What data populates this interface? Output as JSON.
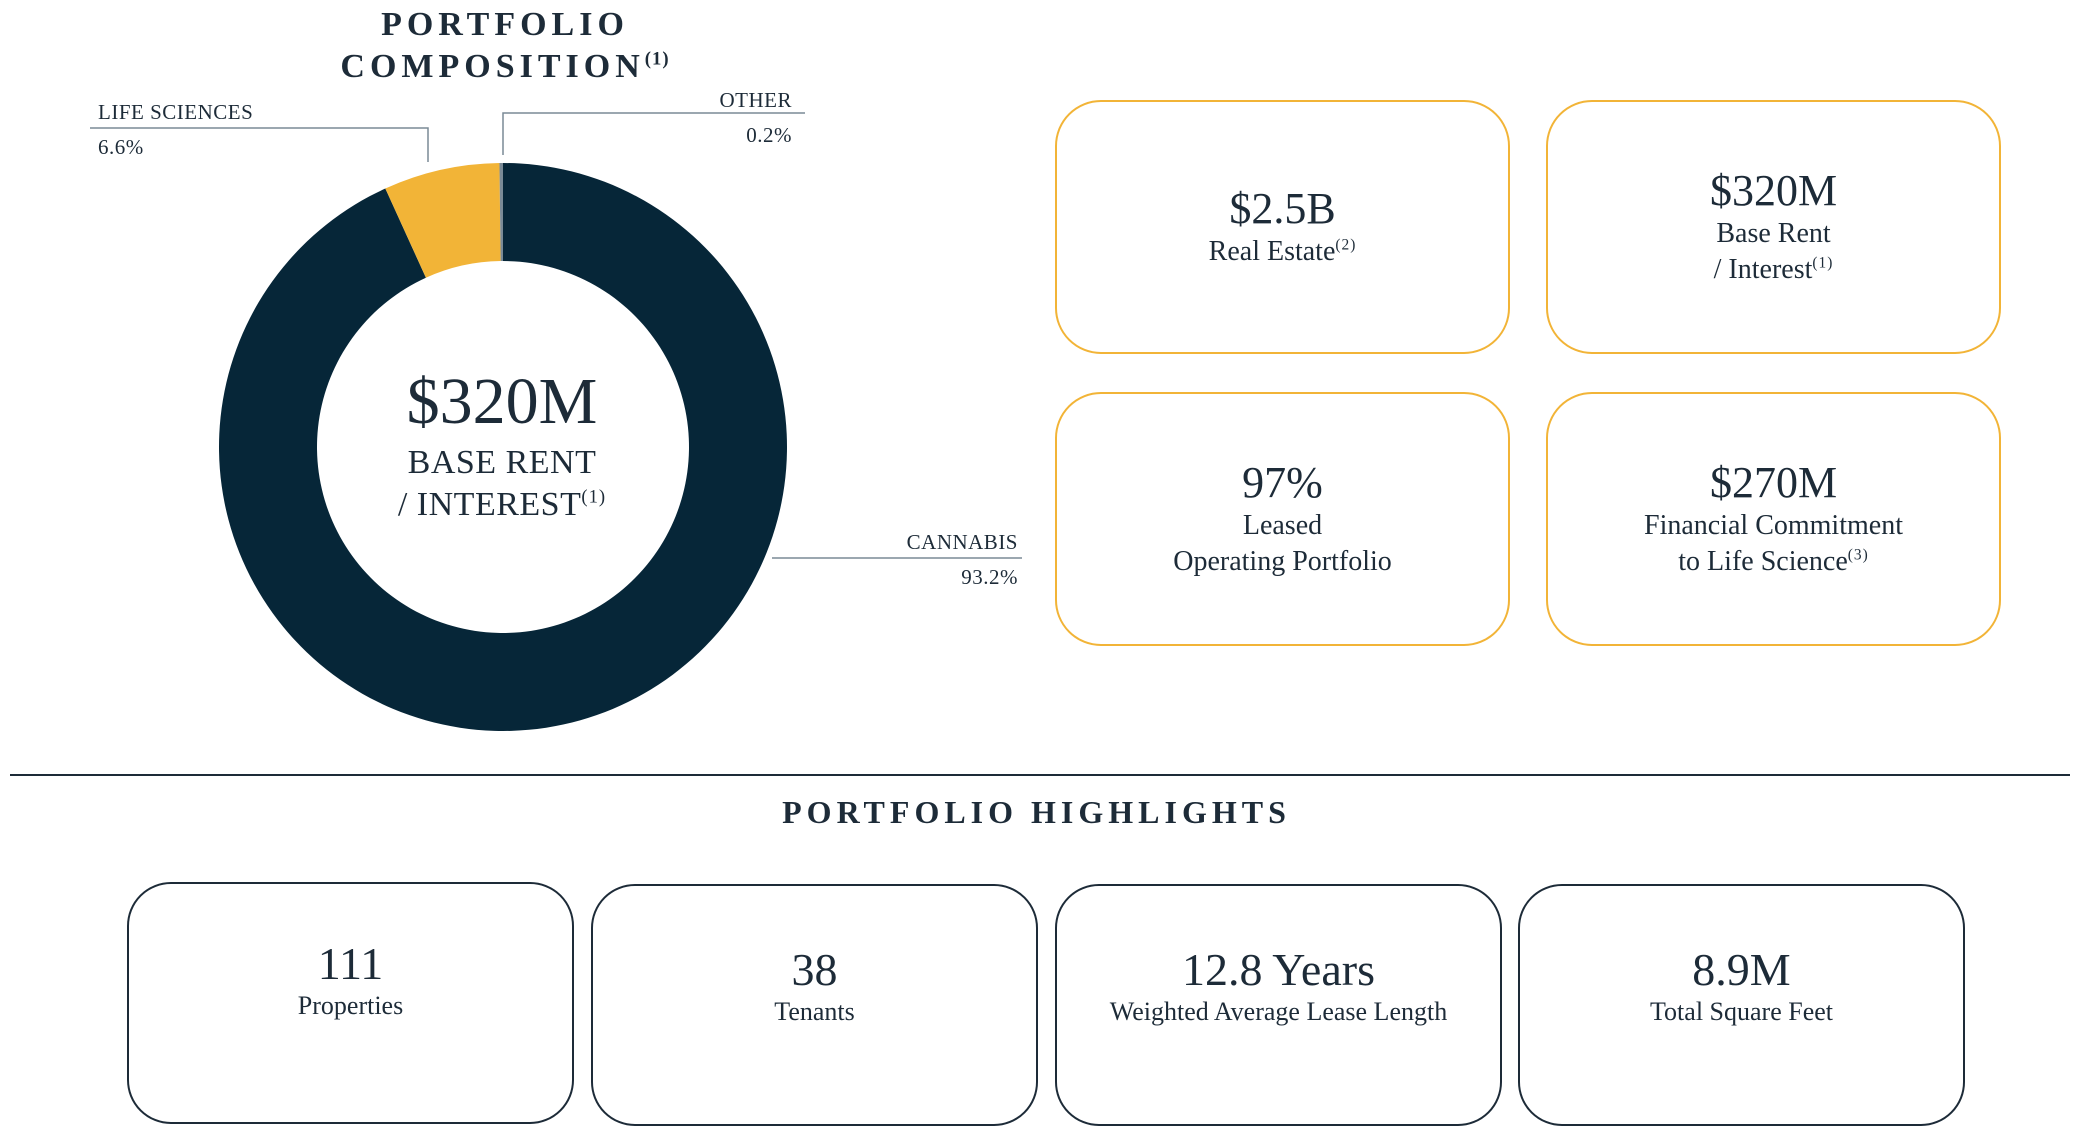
{
  "composition": {
    "title_line1": "PORTFOLIO",
    "title_line2": "COMPOSITION",
    "title_footnote": "(1)",
    "center_value": "$320M",
    "center_label_line1": "BASE RENT",
    "center_label_line2": "/ INTEREST",
    "center_footnote": "(1)"
  },
  "chart_data": {
    "type": "pie",
    "unit": "%",
    "series": [
      {
        "name": "CANNABIS",
        "value": 93.2,
        "label": "93.2%",
        "color": "#062638"
      },
      {
        "name": "LIFE SCIENCES",
        "value": 6.6,
        "label": "6.6%",
        "color": "#f2b437"
      },
      {
        "name": "OTHER",
        "value": 0.2,
        "label": "0.2%",
        "color": "#7a8a96"
      }
    ]
  },
  "stats": [
    {
      "value": "$2.5B",
      "label_line1": "Real Estate",
      "label_line2": "",
      "footnote": "(2)"
    },
    {
      "value": "$320M",
      "label_line1": "Base Rent",
      "label_line2": "/ Interest",
      "footnote": "(1)"
    },
    {
      "value": "97%",
      "label_line1": "Leased",
      "label_line2": "Operating Portfolio",
      "footnote": ""
    },
    {
      "value": "$270M",
      "label_line1": "Financial Commitment",
      "label_line2": "to Life Science",
      "footnote": "(3)"
    }
  ],
  "highlights": {
    "title": "PORTFOLIO HIGHLIGHTS",
    "items": [
      {
        "value": "111",
        "label": "Properties"
      },
      {
        "value": "38",
        "label": "Tenants"
      },
      {
        "value": "12.8 Years",
        "label": "Weighted Average Lease Length"
      },
      {
        "value": "8.9M",
        "label": "Total Square Feet"
      }
    ]
  },
  "colors": {
    "navy": "#062638",
    "gold": "#f2b437",
    "text": "#1d2b38"
  }
}
